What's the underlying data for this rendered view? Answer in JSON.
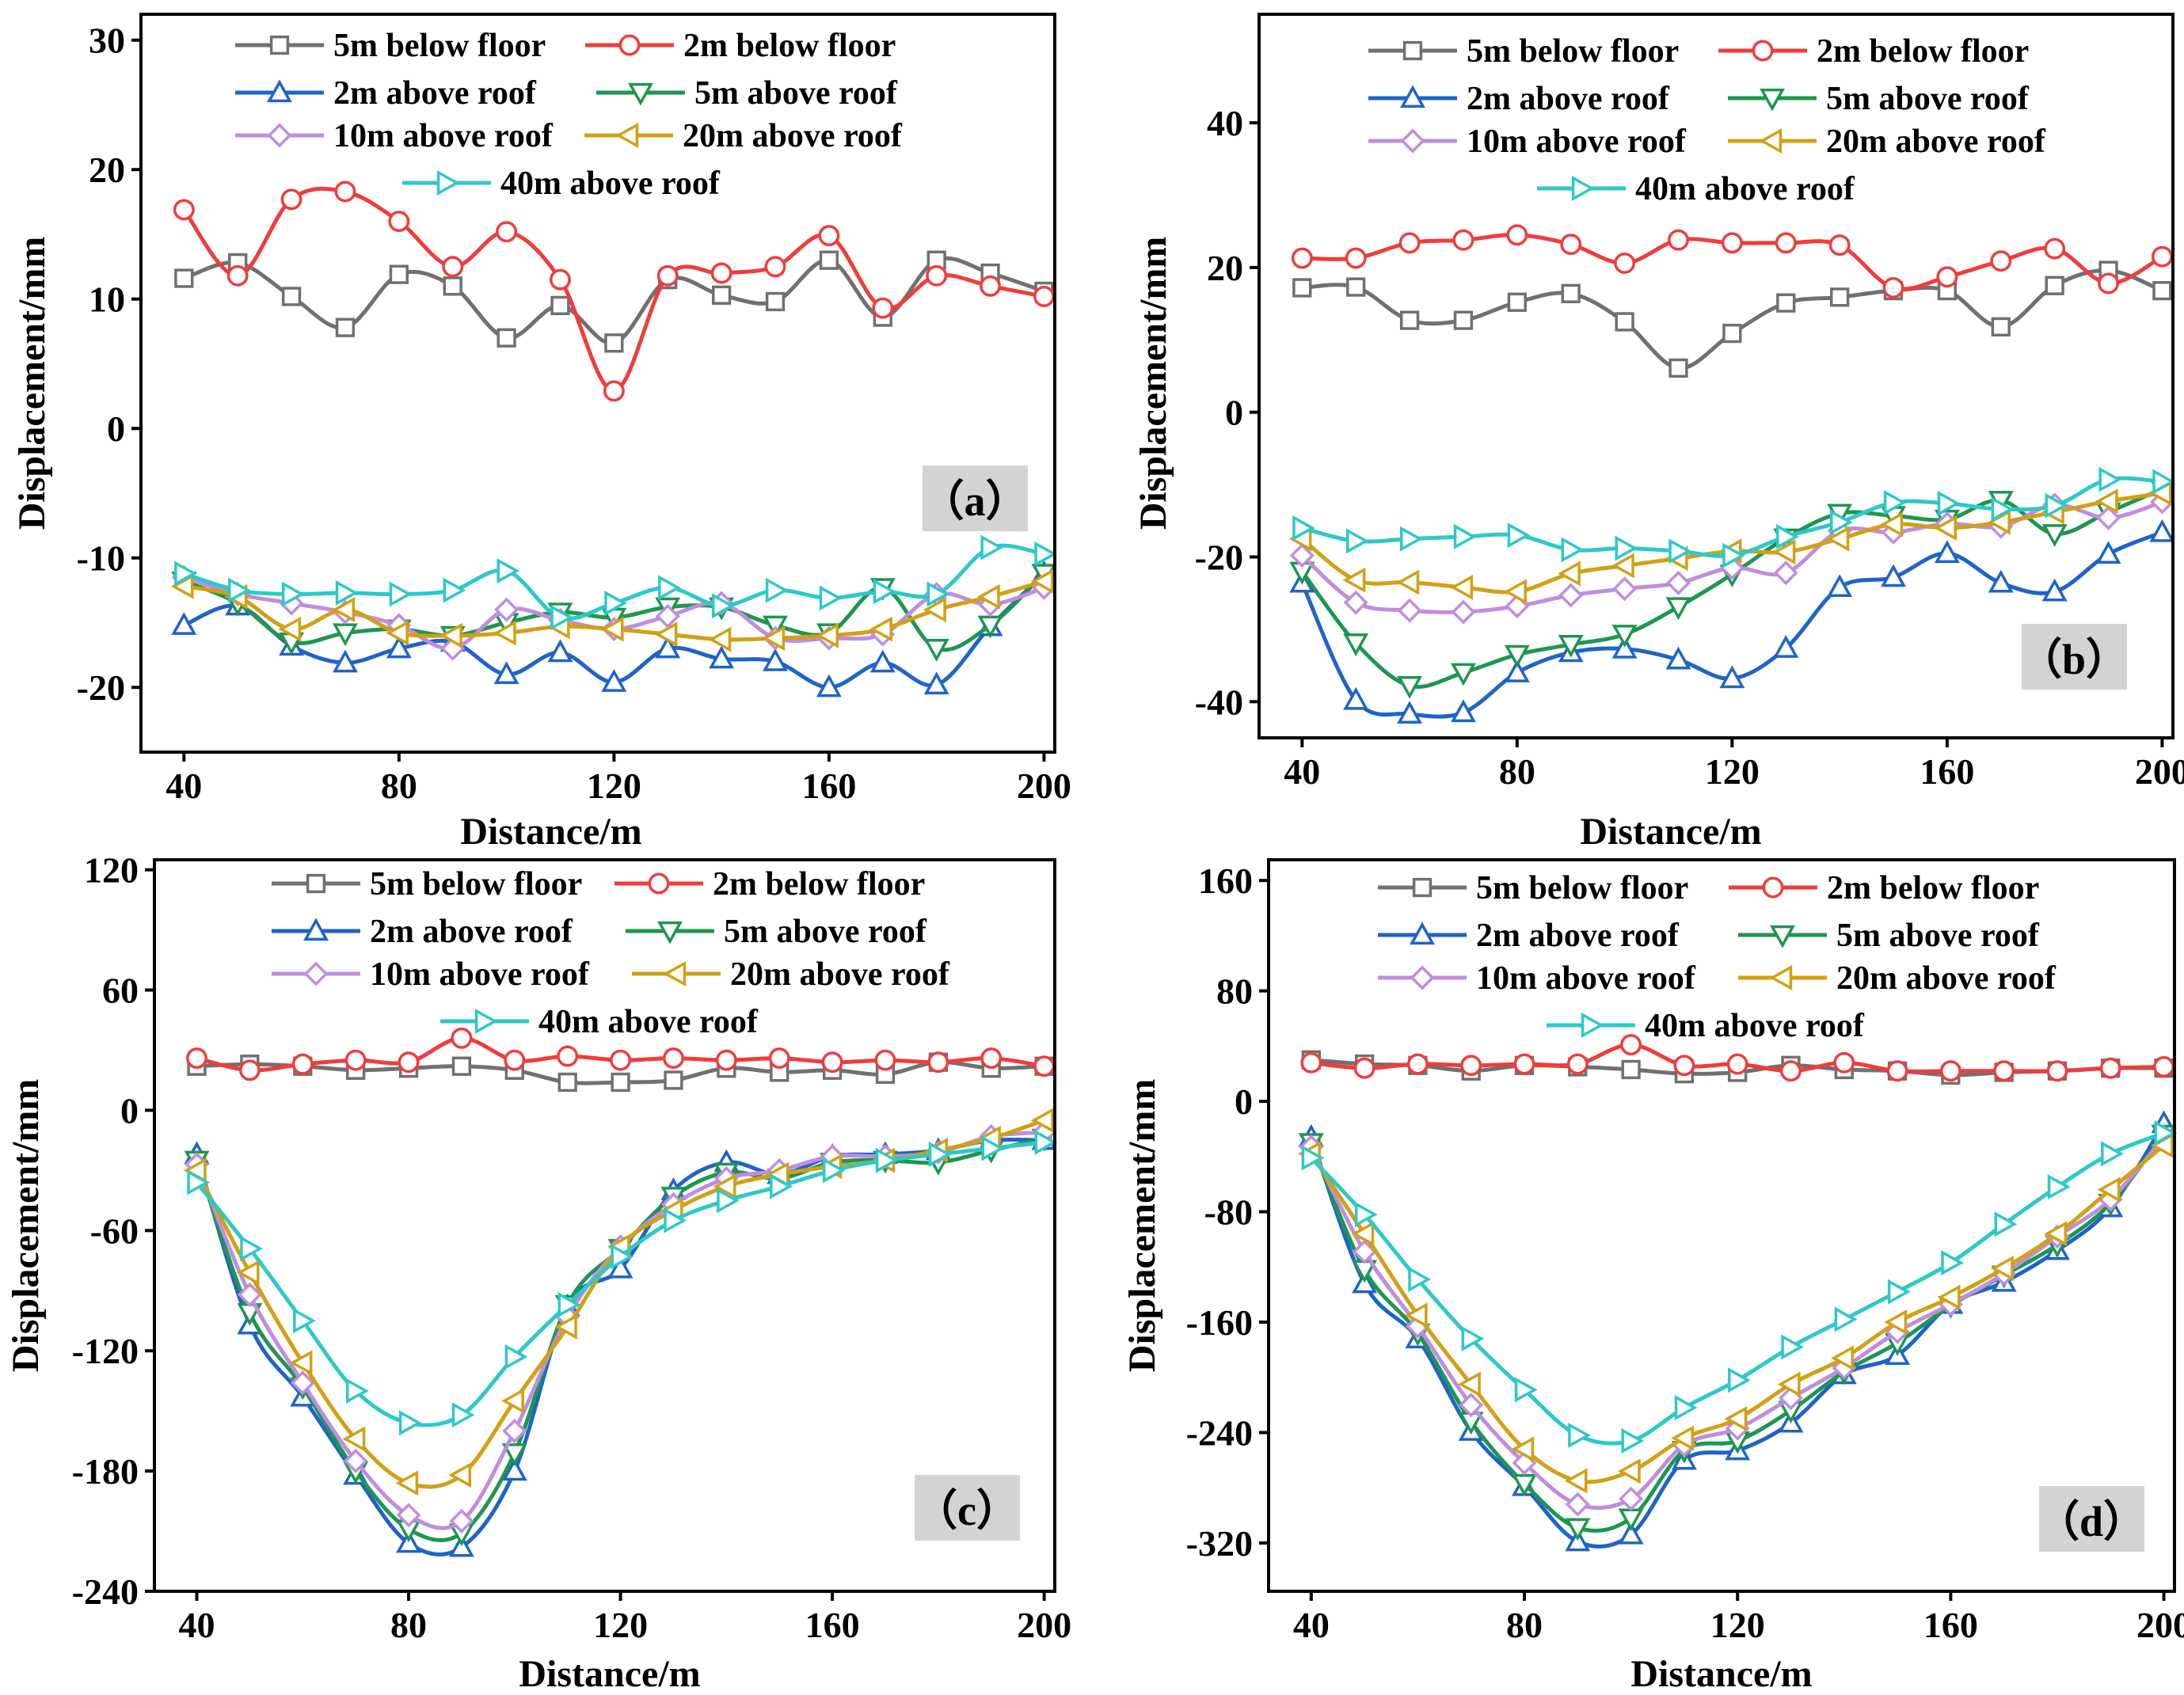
{
  "chart_data": [
    {
      "type": "line",
      "panel_label": "（a）",
      "xlabel": "Distance/m",
      "ylabel": "Displacement/mm",
      "x": [
        40,
        50,
        60,
        70,
        80,
        90,
        100,
        110,
        120,
        130,
        140,
        150,
        160,
        170,
        180,
        190,
        200
      ],
      "xlim": [
        32,
        202
      ],
      "ylim": [
        -25,
        32
      ],
      "xticks": [
        40,
        80,
        120,
        160,
        200
      ],
      "yticks": [
        -20,
        -10,
        0,
        10,
        20,
        30
      ],
      "series": [
        {
          "name": "5m below floor",
          "color": "#707070",
          "marker": "square",
          "values": [
            11.6,
            12.8,
            10.2,
            7.8,
            11.9,
            11.0,
            7.0,
            9.5,
            6.6,
            11.5,
            10.3,
            9.8,
            13.0,
            8.6,
            13.0,
            12.0,
            10.6
          ]
        },
        {
          "name": "2m below floor",
          "color": "#f03c3c",
          "marker": "circle",
          "values": [
            16.9,
            11.8,
            17.7,
            18.3,
            16.0,
            12.5,
            15.2,
            11.5,
            2.9,
            11.8,
            12.0,
            12.5,
            14.9,
            9.3,
            11.8,
            11.0,
            10.2
          ]
        },
        {
          "name": "2m above roof",
          "color": "#1e64c8",
          "marker": "triangle-up",
          "values": [
            -15.2,
            -13.7,
            -16.8,
            -18.1,
            -17.0,
            -16.5,
            -19.0,
            -17.3,
            -19.6,
            -17.0,
            -17.8,
            -18.0,
            -20.0,
            -18.1,
            -19.8,
            -15.3,
            -11.2
          ]
        },
        {
          "name": "5m above roof",
          "color": "#1e9650",
          "marker": "triangle-down",
          "values": [
            -11.8,
            -13.5,
            -16.5,
            -15.8,
            -15.5,
            -16.0,
            -15.0,
            -14.2,
            -14.6,
            -13.8,
            -13.8,
            -15.2,
            -15.8,
            -12.3,
            -17.0,
            -15.2,
            -11.2
          ]
        },
        {
          "name": "10m above roof",
          "color": "#c08ce0",
          "marker": "diamond",
          "values": [
            -11.5,
            -12.8,
            -13.5,
            -14.2,
            -15.2,
            -17.0,
            -14.0,
            -14.8,
            -15.5,
            -14.5,
            -13.5,
            -16.2,
            -16.2,
            -15.9,
            -12.8,
            -13.6,
            -12.3
          ]
        },
        {
          "name": "20m above roof",
          "color": "#d2a014",
          "marker": "triangle-left",
          "values": [
            -12.2,
            -13.0,
            -15.5,
            -14.0,
            -15.8,
            -16.0,
            -15.8,
            -15.3,
            -15.5,
            -15.9,
            -16.3,
            -16.2,
            -16.0,
            -15.5,
            -14.0,
            -13.0,
            -11.8
          ]
        },
        {
          "name": "40m above roof",
          "color": "#2ec8c8",
          "marker": "triangle-right",
          "values": [
            -11.2,
            -12.5,
            -12.8,
            -12.7,
            -12.8,
            -12.5,
            -11.0,
            -14.6,
            -13.5,
            -12.3,
            -13.7,
            -12.5,
            -13.1,
            -12.6,
            -12.8,
            -9.2,
            -9.7
          ]
        }
      ]
    },
    {
      "type": "line",
      "panel_label": "（b）",
      "xlabel": "Distance/m",
      "ylabel": "Displacement/mm",
      "x": [
        40,
        50,
        60,
        70,
        80,
        90,
        100,
        110,
        120,
        130,
        140,
        150,
        160,
        170,
        180,
        190,
        200
      ],
      "xlim": [
        32,
        202
      ],
      "ylim": [
        -45,
        55
      ],
      "xticks": [
        40,
        80,
        120,
        160,
        200
      ],
      "yticks": [
        -40,
        -20,
        0,
        20,
        40
      ],
      "series": [
        {
          "name": "5m below floor",
          "color": "#707070",
          "marker": "square",
          "values": [
            17.2,
            17.3,
            12.7,
            12.7,
            15.2,
            16.4,
            12.5,
            6.1,
            10.9,
            15.1,
            15.9,
            16.8,
            16.8,
            11.8,
            17.5,
            19.6,
            16.8
          ]
        },
        {
          "name": "2m below floor",
          "color": "#f03c3c",
          "marker": "circle",
          "values": [
            21.3,
            21.3,
            23.4,
            23.8,
            24.5,
            23.2,
            20.6,
            23.8,
            23.4,
            23.4,
            23.1,
            17.2,
            18.7,
            20.9,
            22.6,
            17.8,
            21.5
          ]
        },
        {
          "name": "2m above roof",
          "color": "#1e64c8",
          "marker": "triangle-up",
          "values": [
            -23.6,
            -39.8,
            -41.7,
            -41.5,
            -36.0,
            -33.2,
            -32.7,
            -34.2,
            -36.8,
            -32.6,
            -24.2,
            -22.8,
            -19.5,
            -23.6,
            -24.8,
            -19.6,
            -16.6
          ]
        },
        {
          "name": "5m above roof",
          "color": "#1e9650",
          "marker": "triangle-down",
          "values": [
            -22.0,
            -31.9,
            -37.8,
            -36.0,
            -33.5,
            -32.1,
            -30.7,
            -26.9,
            -22.4,
            -17.4,
            -14.0,
            -14.3,
            -14.8,
            -12.2,
            -16.8,
            -13.8,
            -10.6
          ]
        },
        {
          "name": "10m above roof",
          "color": "#c08ce0",
          "marker": "diamond",
          "values": [
            -19.8,
            -26.3,
            -27.4,
            -27.6,
            -26.8,
            -25.3,
            -24.4,
            -23.6,
            -21.5,
            -22.2,
            -16.4,
            -16.6,
            -15.4,
            -15.8,
            -12.8,
            -14.6,
            -12.4
          ]
        },
        {
          "name": "20m above roof",
          "color": "#d2a014",
          "marker": "triangle-left",
          "values": [
            -17.5,
            -23.2,
            -23.5,
            -24.2,
            -24.8,
            -22.3,
            -21.2,
            -20.2,
            -19.2,
            -19.3,
            -17.5,
            -15.5,
            -16.0,
            -15.2,
            -13.8,
            -12.3,
            -11.2
          ]
        },
        {
          "name": "40m above roof",
          "color": "#2ec8c8",
          "marker": "triangle-right",
          "values": [
            -16.0,
            -17.8,
            -17.5,
            -17.2,
            -17.0,
            -19.0,
            -18.8,
            -19.2,
            -19.8,
            -17.2,
            -15.2,
            -12.5,
            -12.6,
            -13.4,
            -12.9,
            -9.3,
            -9.6
          ]
        }
      ]
    },
    {
      "type": "line",
      "panel_label": "（c）",
      "xlabel": "Distance/m",
      "ylabel": "Displacement/mm",
      "x": [
        40,
        50,
        60,
        70,
        80,
        90,
        100,
        110,
        120,
        130,
        140,
        150,
        160,
        170,
        180,
        190,
        200
      ],
      "xlim": [
        32,
        202
      ],
      "ylim": [
        -240,
        125
      ],
      "xticks": [
        40,
        80,
        120,
        160,
        200
      ],
      "yticks": [
        -240,
        -180,
        -120,
        -60,
        0,
        60,
        120
      ],
      "series": [
        {
          "name": "5m below floor",
          "color": "#707070",
          "marker": "square",
          "values": [
            22,
            23,
            22,
            20,
            21,
            22,
            20,
            14,
            14,
            15,
            21,
            19,
            20,
            18,
            24,
            21,
            22
          ]
        },
        {
          "name": "2m below floor",
          "color": "#f03c3c",
          "marker": "circle",
          "values": [
            26,
            20,
            23,
            25,
            24,
            36,
            25,
            27,
            25,
            26,
            25,
            26,
            24,
            25,
            24,
            26,
            22
          ]
        },
        {
          "name": "2m above roof",
          "color": "#1e64c8",
          "marker": "triangle-up",
          "values": [
            -22,
            -107,
            -143,
            -182,
            -216,
            -218,
            -180,
            -98,
            -79,
            -40,
            -26,
            -32,
            -23,
            -22,
            -20,
            -15,
            -15
          ]
        },
        {
          "name": "5m above roof",
          "color": "#1e9650",
          "marker": "triangle-down",
          "values": [
            -25,
            -101,
            -138,
            -180,
            -209,
            -211,
            -171,
            -97,
            -69,
            -43,
            -31,
            -34,
            -26,
            -25,
            -26,
            -20,
            -14
          ]
        },
        {
          "name": "10m above roof",
          "color": "#c08ce0",
          "marker": "diamond",
          "values": [
            -27,
            -92,
            -136,
            -175,
            -202,
            -205,
            -160,
            -103,
            -68,
            -47,
            -34,
            -30,
            -23,
            -23,
            -21,
            -13,
            -11
          ]
        },
        {
          "name": "20m above roof",
          "color": "#d2a014",
          "marker": "triangle-left",
          "values": [
            -30,
            -81,
            -126,
            -164,
            -186,
            -182,
            -145,
            -108,
            -68,
            -50,
            -38,
            -32,
            -28,
            -25,
            -20,
            -14,
            -5
          ]
        },
        {
          "name": "40m above roof",
          "color": "#2ec8c8",
          "marker": "triangle-right",
          "values": [
            -36,
            -69,
            -105,
            -140,
            -156,
            -152,
            -123,
            -97,
            -73,
            -55,
            -45,
            -38,
            -30,
            -25,
            -22,
            -19,
            -16
          ]
        }
      ]
    },
    {
      "type": "line",
      "panel_label": "（d）",
      "xlabel": "Distance/m",
      "ylabel": "Displacement/mm",
      "x": [
        40,
        50,
        60,
        70,
        80,
        90,
        100,
        110,
        120,
        130,
        140,
        150,
        160,
        170,
        180,
        190,
        200
      ],
      "xlim": [
        32,
        202
      ],
      "ylim": [
        -355,
        175
      ],
      "xticks": [
        40,
        80,
        120,
        160,
        200
      ],
      "yticks": [
        -320,
        -240,
        -160,
        -80,
        0,
        80,
        160
      ],
      "series": [
        {
          "name": "5m below floor",
          "color": "#707070",
          "marker": "square",
          "values": [
            30,
            27,
            26,
            22,
            26,
            25,
            23,
            20,
            21,
            26,
            23,
            22,
            19,
            21,
            22,
            24,
            24
          ]
        },
        {
          "name": "2m below floor",
          "color": "#f03c3c",
          "marker": "circle",
          "values": [
            28,
            24,
            27,
            26,
            27,
            27,
            41,
            26,
            27,
            22,
            28,
            22,
            22,
            22,
            22,
            24,
            25
          ]
        },
        {
          "name": "2m above roof",
          "color": "#1e64c8",
          "marker": "triangle-up",
          "values": [
            -26,
            -132,
            -172,
            -239,
            -279,
            -319,
            -314,
            -260,
            -253,
            -233,
            -198,
            -184,
            -147,
            -131,
            -108,
            -77,
            -16
          ]
        },
        {
          "name": "5m above roof",
          "color": "#1e9650",
          "marker": "triangle-down",
          "values": [
            -30,
            -122,
            -168,
            -232,
            -277,
            -309,
            -302,
            -253,
            -246,
            -224,
            -196,
            -175,
            -148,
            -126,
            -104,
            -74,
            -24
          ]
        },
        {
          "name": "10m above roof",
          "color": "#c08ce0",
          "marker": "diamond",
          "values": [
            -33,
            -109,
            -163,
            -220,
            -262,
            -292,
            -288,
            -249,
            -237,
            -215,
            -193,
            -167,
            -147,
            -125,
            -98,
            -71,
            -26
          ]
        },
        {
          "name": "20m above roof",
          "color": "#d2a014",
          "marker": "triangle-left",
          "values": [
            -38,
            -96,
            -155,
            -205,
            -252,
            -275,
            -268,
            -244,
            -230,
            -205,
            -186,
            -160,
            -142,
            -121,
            -96,
            -64,
            -32
          ]
        },
        {
          "name": "40m above roof",
          "color": "#2ec8c8",
          "marker": "triangle-right",
          "values": [
            -41,
            -82,
            -129,
            -172,
            -209,
            -242,
            -246,
            -222,
            -202,
            -178,
            -158,
            -138,
            -117,
            -89,
            -62,
            -38,
            -23
          ]
        }
      ]
    }
  ]
}
